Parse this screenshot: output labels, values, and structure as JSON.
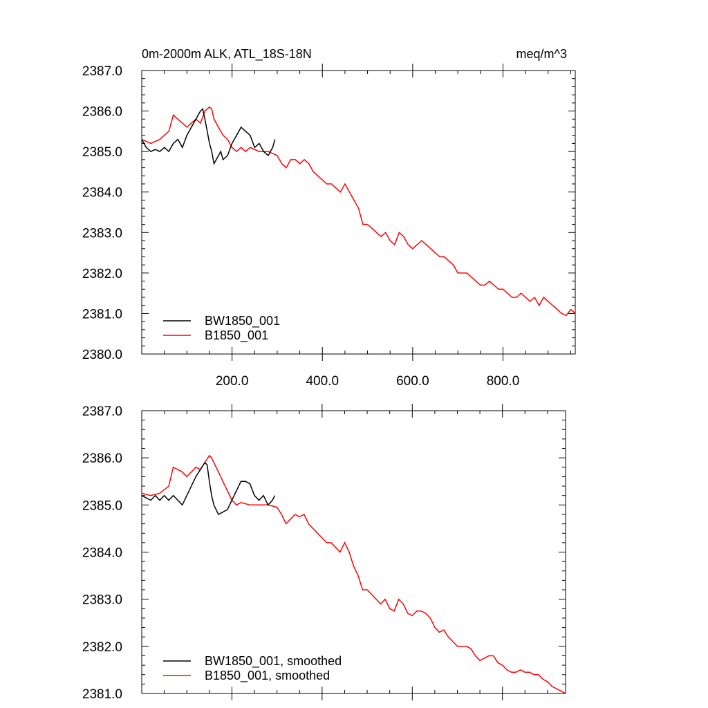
{
  "chart_data": [
    {
      "type": "line",
      "title_left": "0m-2000m ALK, ATL_18S-18N",
      "title_right": "meq/m^3",
      "xlim": [
        0,
        960
      ],
      "ylim": [
        2380.0,
        2387.0
      ],
      "x_ticks": [
        200,
        400,
        600,
        800
      ],
      "x_tick_labels": [
        "200.0",
        "400.0",
        "600.0",
        "800.0"
      ],
      "y_ticks": [
        2380,
        2381,
        2382,
        2383,
        2384,
        2385,
        2386,
        2387
      ],
      "y_tick_labels": [
        "2380.0",
        "2381.0",
        "2382.0",
        "2383.0",
        "2384.0",
        "2385.0",
        "2386.0",
        "2387.0"
      ],
      "series": [
        {
          "name": "BW1850_001",
          "color": "#000000",
          "x": [
            0,
            10,
            20,
            30,
            40,
            50,
            60,
            70,
            80,
            90,
            100,
            110,
            120,
            130,
            135,
            140,
            145,
            150,
            155,
            160,
            165,
            170,
            175,
            180,
            190,
            200,
            210,
            220,
            230,
            240,
            250,
            260,
            270,
            280,
            290,
            295
          ],
          "values": [
            2385.3,
            2385.1,
            2385.0,
            2385.05,
            2385.0,
            2385.1,
            2385.0,
            2385.2,
            2385.3,
            2385.1,
            2385.4,
            2385.6,
            2385.8,
            2386.0,
            2386.05,
            2385.8,
            2385.5,
            2385.2,
            2385.0,
            2384.7,
            2384.8,
            2384.9,
            2385.0,
            2384.8,
            2384.9,
            2385.2,
            2385.4,
            2385.6,
            2385.5,
            2385.4,
            2385.1,
            2385.2,
            2385.0,
            2384.9,
            2385.1,
            2385.3
          ]
        },
        {
          "name": "B1850_001",
          "color": "#ff0000",
          "x": [
            0,
            20,
            40,
            60,
            70,
            80,
            90,
            100,
            110,
            120,
            130,
            140,
            150,
            155,
            160,
            170,
            180,
            190,
            200,
            210,
            220,
            230,
            240,
            260,
            280,
            300,
            310,
            320,
            330,
            340,
            350,
            360,
            370,
            380,
            390,
            400,
            410,
            420,
            430,
            440,
            450,
            460,
            470,
            480,
            490,
            500,
            510,
            520,
            530,
            540,
            550,
            560,
            570,
            580,
            590,
            600,
            610,
            620,
            630,
            640,
            650,
            660,
            670,
            680,
            690,
            700,
            710,
            720,
            730,
            740,
            750,
            760,
            770,
            780,
            790,
            800,
            810,
            820,
            830,
            840,
            850,
            860,
            870,
            880,
            890,
            900,
            910,
            920,
            930,
            940,
            950,
            960
          ],
          "values": [
            2385.3,
            2385.2,
            2385.3,
            2385.5,
            2385.9,
            2385.8,
            2385.7,
            2385.6,
            2385.7,
            2385.8,
            2385.7,
            2386.0,
            2386.1,
            2386.05,
            2385.8,
            2385.6,
            2385.4,
            2385.3,
            2385.1,
            2385.0,
            2385.1,
            2385.0,
            2385.1,
            2385.0,
            2385.0,
            2384.9,
            2384.7,
            2384.6,
            2384.8,
            2384.8,
            2384.7,
            2384.8,
            2384.7,
            2384.5,
            2384.4,
            2384.3,
            2384.2,
            2384.2,
            2384.1,
            2384.0,
            2384.2,
            2384.0,
            2383.8,
            2383.6,
            2383.2,
            2383.2,
            2383.1,
            2383.0,
            2382.9,
            2383.0,
            2382.8,
            2382.7,
            2383.0,
            2382.9,
            2382.7,
            2382.6,
            2382.7,
            2382.8,
            2382.7,
            2382.6,
            2382.5,
            2382.4,
            2382.4,
            2382.3,
            2382.2,
            2382.0,
            2382.0,
            2382.0,
            2381.9,
            2381.8,
            2381.7,
            2381.7,
            2381.8,
            2381.7,
            2381.6,
            2381.6,
            2381.5,
            2381.4,
            2381.4,
            2381.5,
            2381.4,
            2381.3,
            2381.4,
            2381.2,
            2381.4,
            2381.3,
            2381.2,
            2381.1,
            2381.0,
            2380.95,
            2381.1,
            2381.0
          ]
        }
      ]
    },
    {
      "type": "line",
      "xlim": [
        0,
        940
      ],
      "ylim": [
        2381.0,
        2387.0
      ],
      "x_ticks": [
        200,
        400,
        600,
        800
      ],
      "y_ticks": [
        2381,
        2382,
        2383,
        2384,
        2385,
        2386,
        2387
      ],
      "y_tick_labels": [
        "2381.0",
        "2382.0",
        "2383.0",
        "2384.0",
        "2385.0",
        "2386.0",
        "2387.0"
      ],
      "series": [
        {
          "name": "BW1850_001, smoothed",
          "color": "#000000",
          "x": [
            0,
            10,
            20,
            30,
            40,
            50,
            60,
            70,
            80,
            90,
            100,
            110,
            120,
            130,
            140,
            145,
            150,
            155,
            160,
            170,
            180,
            190,
            200,
            210,
            220,
            230,
            240,
            250,
            260,
            270,
            280,
            290,
            295
          ],
          "values": [
            2385.2,
            2385.15,
            2385.1,
            2385.2,
            2385.1,
            2385.2,
            2385.1,
            2385.2,
            2385.1,
            2385.0,
            2385.2,
            2385.4,
            2385.6,
            2385.75,
            2385.9,
            2385.85,
            2385.5,
            2385.2,
            2385.0,
            2384.8,
            2384.85,
            2384.9,
            2385.1,
            2385.3,
            2385.5,
            2385.5,
            2385.45,
            2385.2,
            2385.1,
            2385.2,
            2385.0,
            2385.1,
            2385.2
          ]
        },
        {
          "name": "B1850_001, smoothed",
          "color": "#ff0000",
          "x": [
            0,
            20,
            40,
            60,
            70,
            80,
            90,
            100,
            110,
            120,
            130,
            140,
            150,
            155,
            160,
            170,
            180,
            190,
            200,
            210,
            220,
            240,
            260,
            280,
            300,
            310,
            320,
            330,
            340,
            350,
            360,
            370,
            380,
            390,
            400,
            410,
            420,
            430,
            440,
            450,
            460,
            470,
            480,
            490,
            500,
            510,
            520,
            530,
            540,
            550,
            560,
            570,
            580,
            590,
            600,
            610,
            620,
            630,
            640,
            650,
            660,
            670,
            680,
            690,
            700,
            710,
            720,
            730,
            740,
            750,
            760,
            770,
            780,
            790,
            800,
            810,
            820,
            830,
            840,
            850,
            860,
            870,
            880,
            890,
            900,
            910,
            920,
            930,
            940
          ],
          "values": [
            2385.25,
            2385.2,
            2385.25,
            2385.4,
            2385.8,
            2385.75,
            2385.7,
            2385.6,
            2385.7,
            2385.8,
            2385.75,
            2385.9,
            2386.05,
            2386.0,
            2385.9,
            2385.7,
            2385.5,
            2385.3,
            2385.1,
            2385.0,
            2385.05,
            2385.0,
            2385.0,
            2385.0,
            2384.95,
            2384.8,
            2384.6,
            2384.7,
            2384.8,
            2384.75,
            2384.8,
            2384.6,
            2384.5,
            2384.4,
            2384.3,
            2384.2,
            2384.2,
            2384.1,
            2384.0,
            2384.2,
            2384.0,
            2383.7,
            2383.5,
            2383.2,
            2383.2,
            2383.1,
            2383.0,
            2382.9,
            2383.0,
            2382.8,
            2382.75,
            2383.0,
            2382.9,
            2382.7,
            2382.65,
            2382.75,
            2382.75,
            2382.7,
            2382.6,
            2382.4,
            2382.3,
            2382.35,
            2382.2,
            2382.1,
            2382.0,
            2382.0,
            2382.0,
            2381.95,
            2381.8,
            2381.7,
            2381.75,
            2381.8,
            2381.8,
            2381.65,
            2381.6,
            2381.5,
            2381.45,
            2381.45,
            2381.5,
            2381.45,
            2381.45,
            2381.4,
            2381.4,
            2381.3,
            2381.25,
            2381.15,
            2381.1,
            2381.05,
            2381.0
          ]
        }
      ]
    }
  ]
}
